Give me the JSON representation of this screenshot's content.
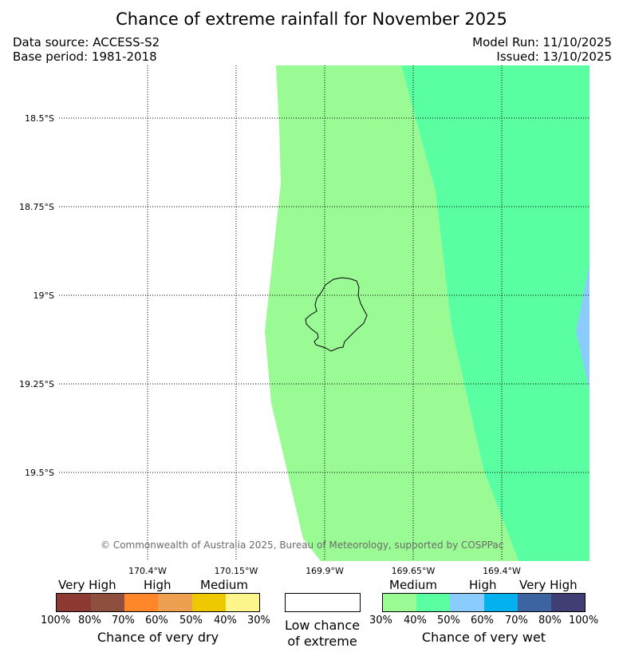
{
  "header": {
    "title": "Chance of extreme rainfall for November 2025",
    "data_source": "Data source: ACCESS-S2",
    "base_period": "Base period: 1981-2018",
    "model_run": "Model Run: 11/10/2025",
    "issued": "Issued: 13/10/2025"
  },
  "map": {
    "latitude_labels": [
      "18.5°S",
      "18.75°S",
      "19°S",
      "19.25°S",
      "19.5°S"
    ],
    "longitude_labels": [
      "170.4°W",
      "170.15°W",
      "169.9°W",
      "169.65°W",
      "169.4°W"
    ],
    "copyright": "© Commonwealth of Australia 2025, Bureau of Meteorology, supported by COSPPac",
    "zones": [
      {
        "name": "wet-medium-30-40",
        "color": "#9afa94"
      },
      {
        "name": "wet-medium-40-50",
        "color": "#59ffa1"
      },
      {
        "name": "wet-high-50-60",
        "color": "#8acdfd"
      }
    ]
  },
  "legend": {
    "dry": {
      "group_labels": [
        "Very High",
        "High",
        "Medium"
      ],
      "colors": [
        "#8c3a32",
        "#8f4f3e",
        "#ff8629",
        "#ef9f50",
        "#eec800",
        "#fef58c"
      ],
      "ticks": [
        "100%",
        "80%",
        "70%",
        "60%",
        "50%",
        "40%",
        "30%"
      ],
      "caption": "Chance of very dry"
    },
    "neutral": {
      "color": "#ffffff",
      "caption_line1": "Low chance",
      "caption_line2": "of extreme"
    },
    "wet": {
      "group_labels": [
        "Medium",
        "High",
        "Very High"
      ],
      "colors": [
        "#9afa94",
        "#59ffa1",
        "#8acdfd",
        "#03b1ef",
        "#3d64a1",
        "#413e75"
      ],
      "ticks": [
        "30%",
        "40%",
        "50%",
        "60%",
        "70%",
        "80%",
        "100%"
      ],
      "caption": "Chance of very wet"
    }
  }
}
